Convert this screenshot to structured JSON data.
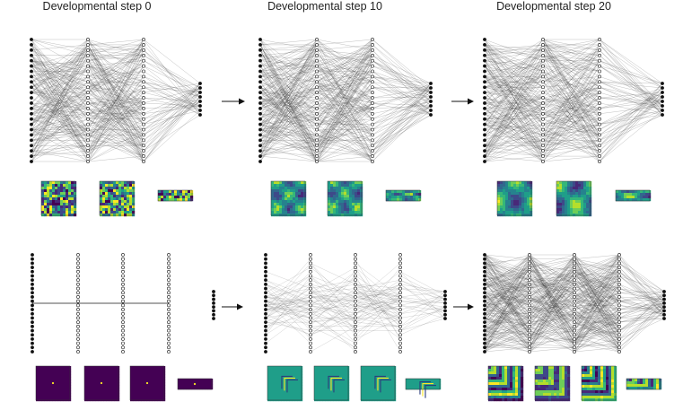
{
  "headings": [
    "Developmental step 0",
    "Developmental step 10",
    "Developmental step 20"
  ],
  "rows": [
    {
      "stages": [
        {
          "wiring": "dense",
          "maps": "noise"
        },
        {
          "wiring": "dense",
          "maps": "blobs"
        },
        {
          "wiring": "dense",
          "maps": "blobs-large"
        }
      ]
    },
    {
      "stages": [
        {
          "wiring": "single-line",
          "maps": "point"
        },
        {
          "wiring": "sparse",
          "maps": "chevron-faint"
        },
        {
          "wiring": "dense",
          "maps": "chevron-strong"
        }
      ]
    }
  ],
  "colors": {
    "edge": "#1a1a1a",
    "node": "#111111",
    "arrow": "#111111",
    "viridis_dark": "#440154",
    "viridis_mid": "#21918c",
    "viridis_light": "#fde725"
  }
}
